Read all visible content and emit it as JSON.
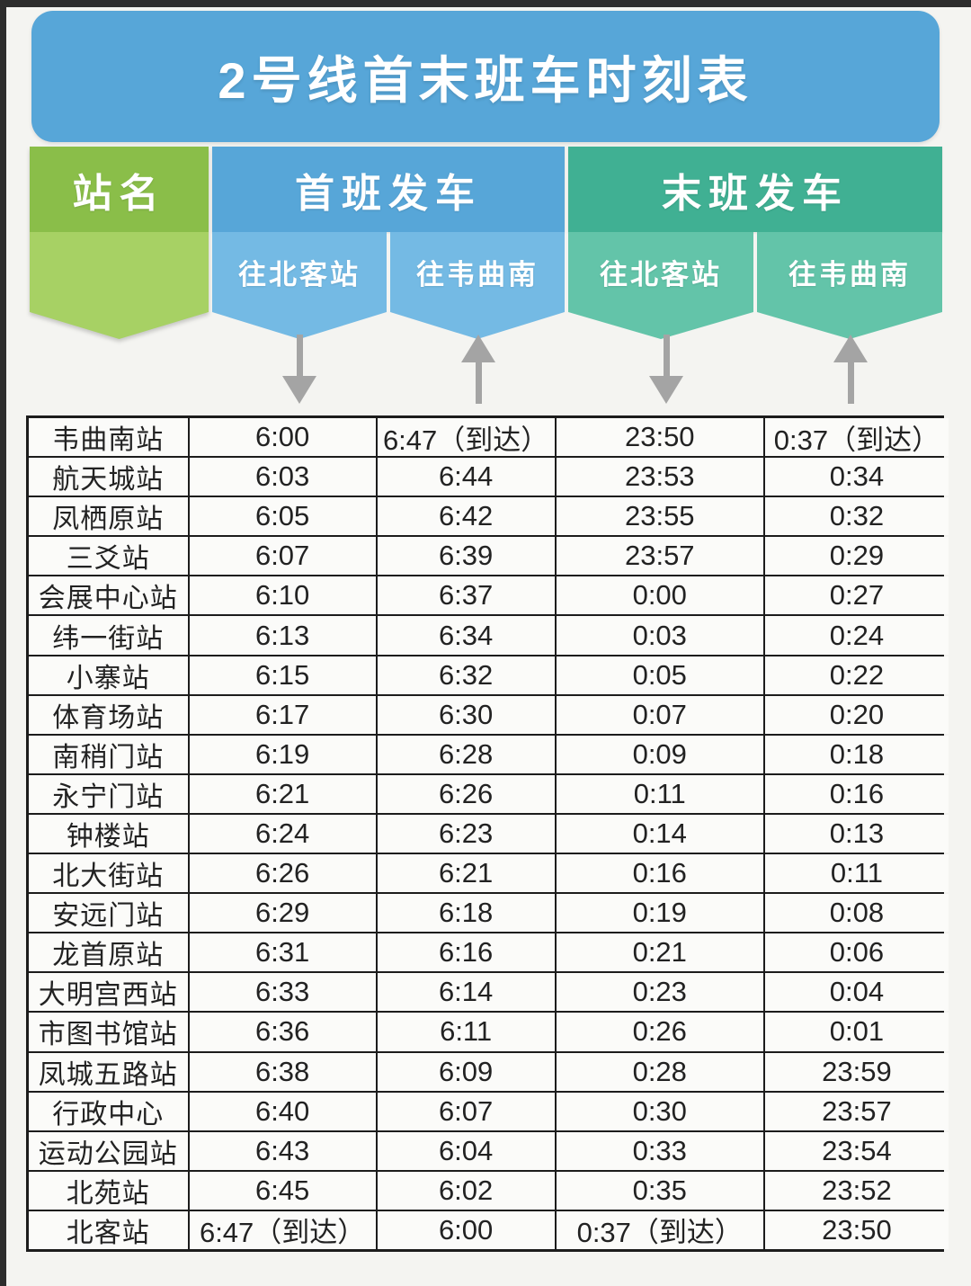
{
  "title": "2号线首末班车时刻表",
  "header": {
    "station_label": "站名",
    "groups": [
      {
        "label": "首班发车",
        "sub_labels": [
          "往北客站",
          "往韦曲南"
        ]
      },
      {
        "label": "末班发车",
        "sub_labels": [
          "往北客站",
          "往韦曲南"
        ]
      }
    ],
    "arrow_directions": [
      "down",
      "up",
      "down",
      "up"
    ]
  },
  "colors": {
    "banner_blue": "#57a6d8",
    "green_dark": "#8abe49",
    "green_light": "#a7d164",
    "blue_dark": "#57a6d8",
    "blue_light": "#74bae4",
    "teal_dark": "#40b093",
    "teal_light": "#63c4a9",
    "arrow_gray": "#a4a4a4",
    "table_border": "#1c1c1c"
  },
  "table": {
    "columns": [
      "站名",
      "首班发车 往北客站",
      "首班发车 往韦曲南",
      "末班发车 往北客站",
      "末班发车 往韦曲南"
    ],
    "rows": [
      {
        "station": "韦曲南站",
        "first_to_north": "6:00",
        "first_to_south": "6:47（到达）",
        "last_to_north": "23:50",
        "last_to_south": "0:37（到达）"
      },
      {
        "station": "航天城站",
        "first_to_north": "6:03",
        "first_to_south": "6:44",
        "last_to_north": "23:53",
        "last_to_south": "0:34"
      },
      {
        "station": "凤栖原站",
        "first_to_north": "6:05",
        "first_to_south": "6:42",
        "last_to_north": "23:55",
        "last_to_south": "0:32"
      },
      {
        "station": "三爻站",
        "first_to_north": "6:07",
        "first_to_south": "6:39",
        "last_to_north": "23:57",
        "last_to_south": "0:29"
      },
      {
        "station": "会展中心站",
        "first_to_north": "6:10",
        "first_to_south": "6:37",
        "last_to_north": "0:00",
        "last_to_south": "0:27"
      },
      {
        "station": "纬一街站",
        "first_to_north": "6:13",
        "first_to_south": "6:34",
        "last_to_north": "0:03",
        "last_to_south": "0:24"
      },
      {
        "station": "小寨站",
        "first_to_north": "6:15",
        "first_to_south": "6:32",
        "last_to_north": "0:05",
        "last_to_south": "0:22"
      },
      {
        "station": "体育场站",
        "first_to_north": "6:17",
        "first_to_south": "6:30",
        "last_to_north": "0:07",
        "last_to_south": "0:20"
      },
      {
        "station": "南稍门站",
        "first_to_north": "6:19",
        "first_to_south": "6:28",
        "last_to_north": "0:09",
        "last_to_south": "0:18"
      },
      {
        "station": "永宁门站",
        "first_to_north": "6:21",
        "first_to_south": "6:26",
        "last_to_north": "0:11",
        "last_to_south": "0:16"
      },
      {
        "station": "钟楼站",
        "first_to_north": "6:24",
        "first_to_south": "6:23",
        "last_to_north": "0:14",
        "last_to_south": "0:13"
      },
      {
        "station": "北大街站",
        "first_to_north": "6:26",
        "first_to_south": "6:21",
        "last_to_north": "0:16",
        "last_to_south": "0:11"
      },
      {
        "station": "安远门站",
        "first_to_north": "6:29",
        "first_to_south": "6:18",
        "last_to_north": "0:19",
        "last_to_south": "0:08"
      },
      {
        "station": "龙首原站",
        "first_to_north": "6:31",
        "first_to_south": "6:16",
        "last_to_north": "0:21",
        "last_to_south": "0:06"
      },
      {
        "station": "大明宫西站",
        "first_to_north": "6:33",
        "first_to_south": "6:14",
        "last_to_north": "0:23",
        "last_to_south": "0:04"
      },
      {
        "station": "市图书馆站",
        "first_to_north": "6:36",
        "first_to_south": "6:11",
        "last_to_north": "0:26",
        "last_to_south": "0:01"
      },
      {
        "station": "凤城五路站",
        "first_to_north": "6:38",
        "first_to_south": "6:09",
        "last_to_north": "0:28",
        "last_to_south": "23:59"
      },
      {
        "station": "行政中心",
        "first_to_north": "6:40",
        "first_to_south": "6:07",
        "last_to_north": "0:30",
        "last_to_south": "23:57"
      },
      {
        "station": "运动公园站",
        "first_to_north": "6:43",
        "first_to_south": "6:04",
        "last_to_north": "0:33",
        "last_to_south": "23:54"
      },
      {
        "station": "北苑站",
        "first_to_north": "6:45",
        "first_to_south": "6:02",
        "last_to_north": "0:35",
        "last_to_south": "23:52"
      },
      {
        "station": "北客站",
        "first_to_north": "6:47（到达）",
        "first_to_south": "6:00",
        "last_to_north": "0:37（到达）",
        "last_to_south": "23:50"
      }
    ]
  }
}
